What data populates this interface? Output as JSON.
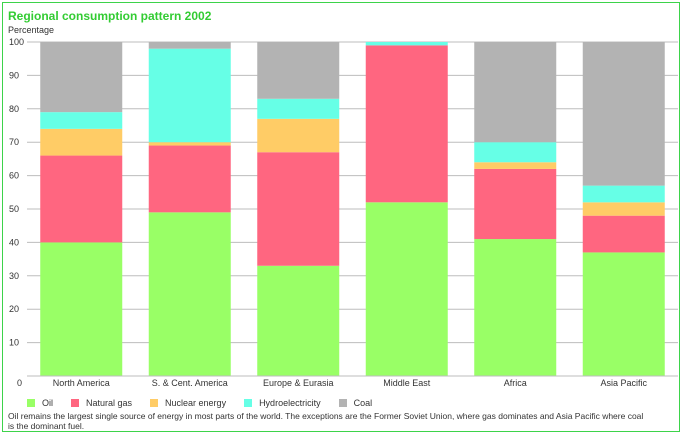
{
  "chart_data": {
    "type": "bar",
    "stacked": true,
    "title": "Regional consumption pattern 2002",
    "ylabel": "Percentage",
    "xlabel": "",
    "ylim": [
      0,
      100
    ],
    "yticks": [
      0,
      10,
      20,
      30,
      40,
      50,
      60,
      70,
      80,
      90,
      100
    ],
    "grid": true,
    "legend_position": "bottom",
    "categories": [
      "North America",
      "S. & Cent. America",
      "Europe & Eurasia",
      "Middle East",
      "Africa",
      "Asia Pacific"
    ],
    "series": [
      {
        "name": "Oil",
        "color": "#99ff66",
        "values": [
          40,
          49,
          33,
          52,
          41,
          37
        ]
      },
      {
        "name": "Natural gas",
        "color": "#ff6680",
        "values": [
          26,
          20,
          34,
          47,
          21,
          11
        ]
      },
      {
        "name": "Nuclear energy",
        "color": "#ffcc66",
        "values": [
          8,
          1,
          10,
          0,
          2,
          4
        ]
      },
      {
        "name": "Hydroelectricity",
        "color": "#66ffe6",
        "values": [
          5,
          28,
          6,
          1,
          6,
          5
        ]
      },
      {
        "name": "Coal",
        "color": "#b3b3b3",
        "values": [
          21,
          2,
          17,
          0,
          30,
          43
        ]
      }
    ]
  },
  "footnote": "Oil remains the largest single source of energy in most parts of the world. The exceptions are the Former Soviet Union, where gas dominates and Asia Pacific where coal is the dominant fuel.",
  "colors": {
    "frame": "#3dd34a",
    "title": "#33cc33",
    "grid": "#bdbdbd"
  }
}
